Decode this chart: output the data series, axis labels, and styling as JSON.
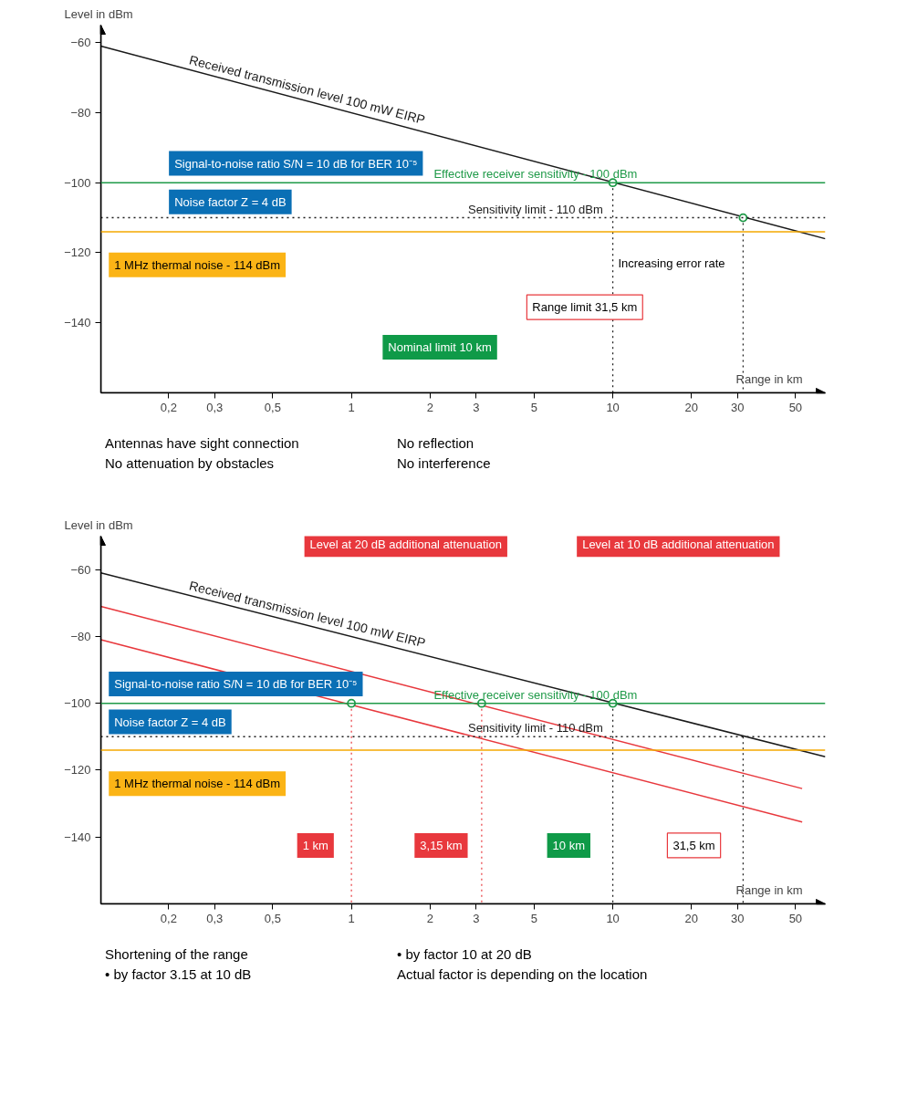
{
  "chart_data": [
    {
      "type": "line",
      "xlabel": "Range in km",
      "ylabel": "Level in dBm",
      "log": "x",
      "grid": false,
      "xlim": [
        0.11,
        65
      ],
      "ylim": [
        -160,
        -55
      ],
      "xticks": [
        {
          "value": 0.2,
          "label": "0,2"
        },
        {
          "value": 0.3,
          "label": "0,3"
        },
        {
          "value": 0.5,
          "label": "0,5"
        },
        1,
        2,
        3,
        5,
        10,
        20,
        30,
        50
      ],
      "yticks": [
        -60,
        -80,
        -100,
        -120,
        -140
      ],
      "series": [
        {
          "name": "Received transmission level 100 mW EIRP",
          "color": "#1a1a1a",
          "x": [
            0.11,
            65
          ],
          "values": [
            -61,
            -116
          ]
        },
        {
          "type": "line",
          "color": "#1a1a1a",
          "line_style": "dotted",
          "x": [
            10,
            10
          ],
          "values": [
            -100,
            -160
          ]
        },
        {
          "type": "line",
          "color": "#1a1a1a",
          "line_style": "dotted",
          "x": [
            31.5,
            31.5
          ],
          "values": [
            -110,
            -160
          ]
        },
        {
          "type": "scatter",
          "marker": "circle",
          "color": "#1f9a48",
          "x": [
            10,
            31.5
          ],
          "values": [
            -100,
            -110
          ]
        }
      ],
      "ref_lines": [
        {
          "axis": "y",
          "value": -100,
          "label": "Effective receiver sensitivity - 100 dBm",
          "color": "#1f9a48",
          "line_style": "solid"
        },
        {
          "axis": "y",
          "value": -110,
          "label": "Sensitivity limit - 110 dBm",
          "color": "#1a1a1a",
          "line_style": "dotted"
        },
        {
          "axis": "y",
          "value": -114,
          "label": null,
          "color": "#f5a800",
          "line_style": "solid"
        }
      ],
      "annotations": [
        "Signal-to-noise ratio S/N = 10 dB for BER 10⁻⁵",
        "Noise factor Z = 4 dB",
        "1 MHz thermal noise - 114 dBm",
        "Increasing error rate",
        "Range limit 31,5 km",
        "Nominal limit 10 km",
        "Antennas have sight connection",
        "No reflection",
        "No attenuation by obstacles",
        "No interference"
      ]
    },
    {
      "type": "line",
      "xlabel": "Range in km",
      "ylabel": "Level in dBm",
      "log": "x",
      "grid": false,
      "xlim": [
        0.11,
        65
      ],
      "ylim": [
        -160,
        -50
      ],
      "xticks": [
        {
          "value": 0.2,
          "label": "0,2"
        },
        {
          "value": 0.3,
          "label": "0,3"
        },
        {
          "value": 0.5,
          "label": "0,5"
        },
        1,
        2,
        3,
        5,
        10,
        20,
        30,
        50
      ],
      "yticks": [
        -60,
        -80,
        -100,
        -120,
        -140
      ],
      "series": [
        {
          "name": "Received transmission level 100 mW EIRP",
          "color": "#1a1a1a",
          "x": [
            0.11,
            65
          ],
          "values": [
            -61,
            -116
          ]
        },
        {
          "color": "#e8383d",
          "x": [
            0.11,
            53
          ],
          "values": [
            -71,
            -125.5
          ]
        },
        {
          "color": "#e8383d",
          "x": [
            0.11,
            53
          ],
          "values": [
            -81,
            -135.5
          ]
        },
        {
          "type": "line",
          "color": "#e8383d",
          "line_style": "dotted",
          "x": [
            1,
            1
          ],
          "values": [
            -100,
            -160
          ]
        },
        {
          "type": "line",
          "color": "#e8383d",
          "line_style": "dotted",
          "x": [
            3.15,
            3.15
          ],
          "values": [
            -100,
            -160
          ]
        },
        {
          "type": "line",
          "color": "#1a1a1a",
          "line_style": "dotted",
          "x": [
            10,
            10
          ],
          "values": [
            -100,
            -160
          ]
        },
        {
          "type": "line",
          "color": "#1a1a1a",
          "line_style": "dotted",
          "x": [
            31.5,
            31.5
          ],
          "values": [
            -110,
            -160
          ]
        },
        {
          "type": "scatter",
          "marker": "circle",
          "color": "#1f9a48",
          "x": [
            1,
            3.15,
            10
          ],
          "values": [
            -100,
            -100,
            -100
          ]
        }
      ],
      "ref_lines": [
        {
          "axis": "y",
          "value": -100,
          "label": "Effective receiver sensitivity - 100 dBm",
          "color": "#1f9a48",
          "line_style": "solid"
        },
        {
          "axis": "y",
          "value": -110,
          "label": "Sensitivity limit - 110 dBm",
          "color": "#1a1a1a",
          "line_style": "dotted"
        },
        {
          "axis": "y",
          "value": -114,
          "label": null,
          "color": "#f5a800",
          "line_style": "solid"
        }
      ],
      "annotations": [
        "Level at 20 dB additional attenuation",
        "Level at 10 dB additional attenuation",
        "Signal-to-noise ratio S/N = 10 dB for BER 10⁻⁵",
        "Noise factor Z = 4 dB",
        "1 MHz thermal noise - 114 dBm",
        "1 km",
        "3,15 km",
        "10 km",
        "31,5 km",
        "Shortening of the range",
        "• by factor 10 at 20 dB",
        "• by factor 3.15 at 10 dB",
        "Actual factor is depending on the location"
      ]
    }
  ]
}
